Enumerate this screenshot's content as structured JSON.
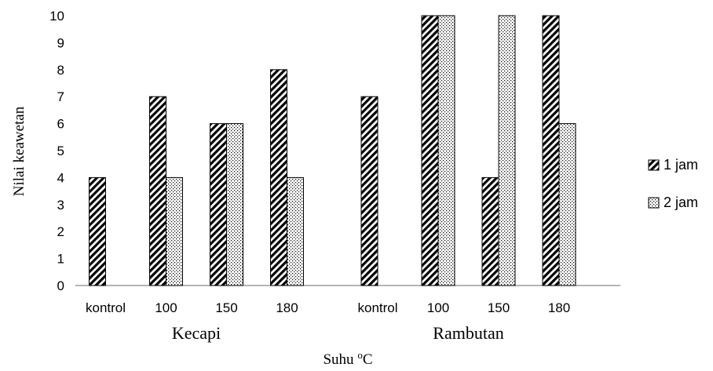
{
  "chart_data": {
    "type": "bar",
    "ylabel": "Nilai keawetan",
    "xlabel_main": "Suhu ",
    "xlabel_sup": "o",
    "xlabel_unit": "C",
    "ylim": [
      0,
      10
    ],
    "yticks": [
      "0",
      "1",
      "2",
      "3",
      "4",
      "5",
      "6",
      "7",
      "8",
      "9",
      "10"
    ],
    "grid": false,
    "legend_position": "right",
    "groups": [
      {
        "name": "Kecapi",
        "categories": [
          "kontrol",
          "100",
          "150",
          "180"
        ],
        "series": [
          {
            "name": "1 jam",
            "values": [
              4,
              7,
              6,
              8
            ]
          },
          {
            "name": "2 jam",
            "values": [
              null,
              4,
              6,
              4
            ]
          }
        ]
      },
      {
        "name": "Rambutan",
        "categories": [
          "kontrol",
          "100",
          "150",
          "180"
        ],
        "series": [
          {
            "name": "1 jam",
            "values": [
              7,
              10,
              4,
              10
            ]
          },
          {
            "name": "2 jam",
            "values": [
              null,
              10,
              10,
              6
            ]
          }
        ]
      }
    ],
    "legend": [
      {
        "name": "1 jam",
        "pattern": "diagonal-hatch"
      },
      {
        "name": "2 jam",
        "pattern": "dots"
      }
    ]
  }
}
